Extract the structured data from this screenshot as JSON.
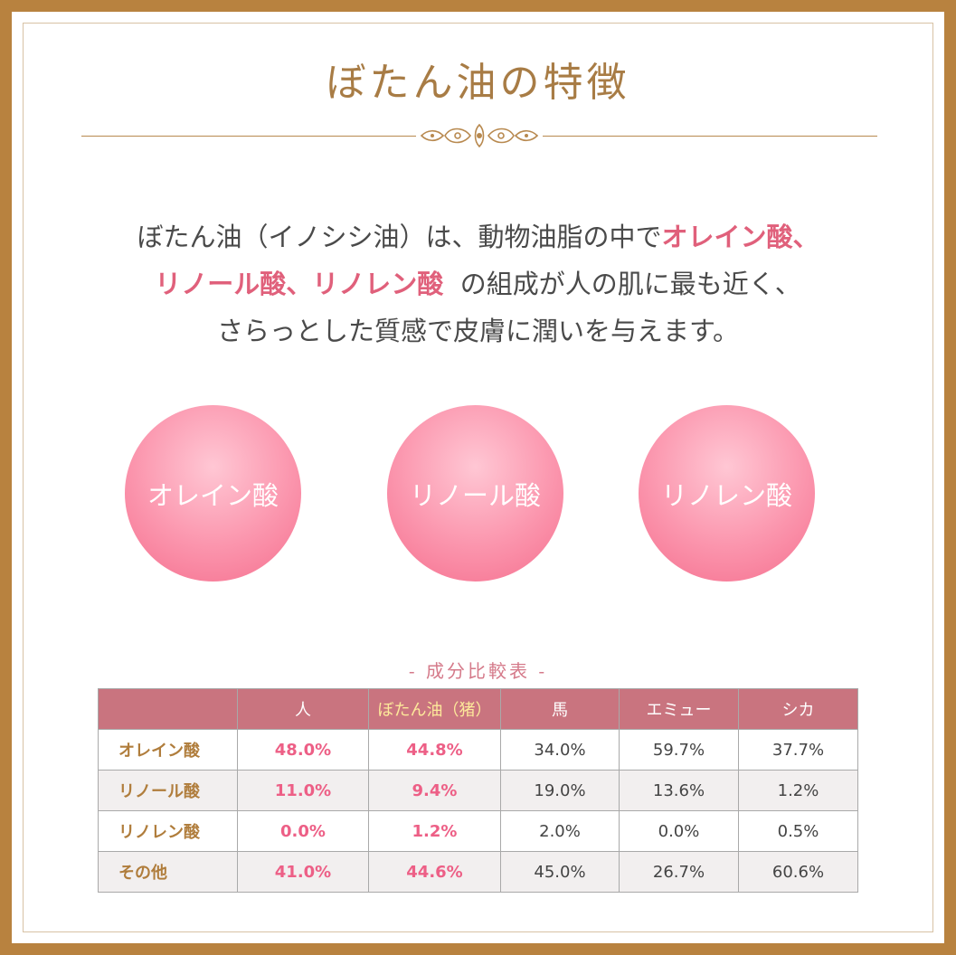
{
  "title": "ぼたん油の特徴",
  "intro": {
    "line1_a": "ぼたん油（イノシシ油）は、動物油脂の中で",
    "line1_hl": "オレイン酸、",
    "line2_hl": "リノール酸、リノレン酸",
    "line2_b": "の組成が人の肌に最も近く、",
    "line3": "さらっとした質感で皮膚に潤いを与えます。"
  },
  "circles": [
    "オレイン酸",
    "リノール酸",
    "リノレン酸"
  ],
  "table": {
    "caption": "- 成分比較表 -",
    "headers": [
      "",
      "人",
      "ぼたん油（猪）",
      "馬",
      "エミュー",
      "シカ"
    ],
    "rows": [
      {
        "label": "オレイン酸",
        "cells": [
          "48.0%",
          "44.8%",
          "34.0%",
          "59.7%",
          "37.7%"
        ]
      },
      {
        "label": "リノール酸",
        "cells": [
          "11.0%",
          "9.4%",
          "19.0%",
          "13.6%",
          "1.2%"
        ]
      },
      {
        "label": "リノレン酸",
        "cells": [
          "0.0%",
          "1.2%",
          "2.0%",
          "0.0%",
          "0.5%"
        ]
      },
      {
        "label": "その他",
        "cells": [
          "41.0%",
          "44.6%",
          "45.0%",
          "26.7%",
          "60.6%"
        ]
      }
    ]
  },
  "colors": {
    "frame": "#b8823f",
    "title": "#a87c45",
    "highlight": "#e0607b",
    "circle": "#f987a2",
    "table_header": "#c9747f"
  }
}
